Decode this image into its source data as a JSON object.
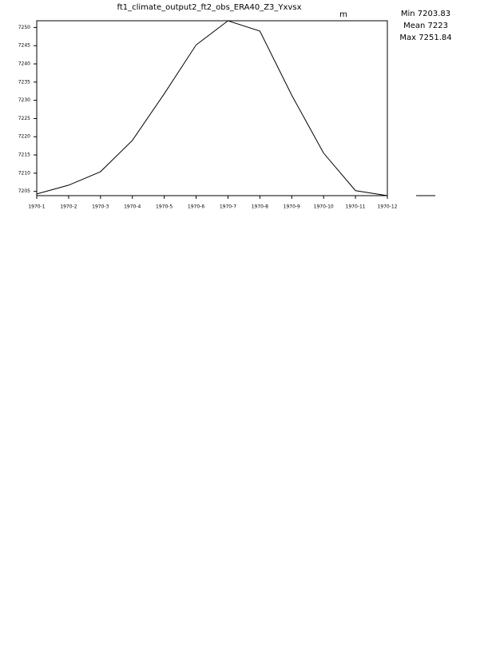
{
  "chart_data": {
    "type": "line",
    "title": "ft1_climate_output2_ft2_obs_ERA40_Z3_Yxvsx",
    "unit": "m",
    "stats": [
      "Min 7203.83",
      "Mean 7223",
      "Max 7251.84"
    ],
    "categories": [
      "1970-1",
      "1970-2",
      "1970-3",
      "1970-4",
      "1970-5",
      "1970-6",
      "1970-7",
      "1970-8",
      "1970-9",
      "1970-10",
      "1970-11",
      "1970-12"
    ],
    "values": [
      7204.3,
      7206.7,
      7210.4,
      7219.0,
      7231.8,
      7245.2,
      7251.84,
      7249.0,
      7231.4,
      7215.5,
      7205.2,
      7203.83
    ],
    "color": "#000000",
    "ylim": [
      7203.83,
      7251.84
    ],
    "yticks": [
      7205,
      7210,
      7215,
      7220,
      7225,
      7230,
      7235,
      7240,
      7245,
      7250
    ]
  }
}
